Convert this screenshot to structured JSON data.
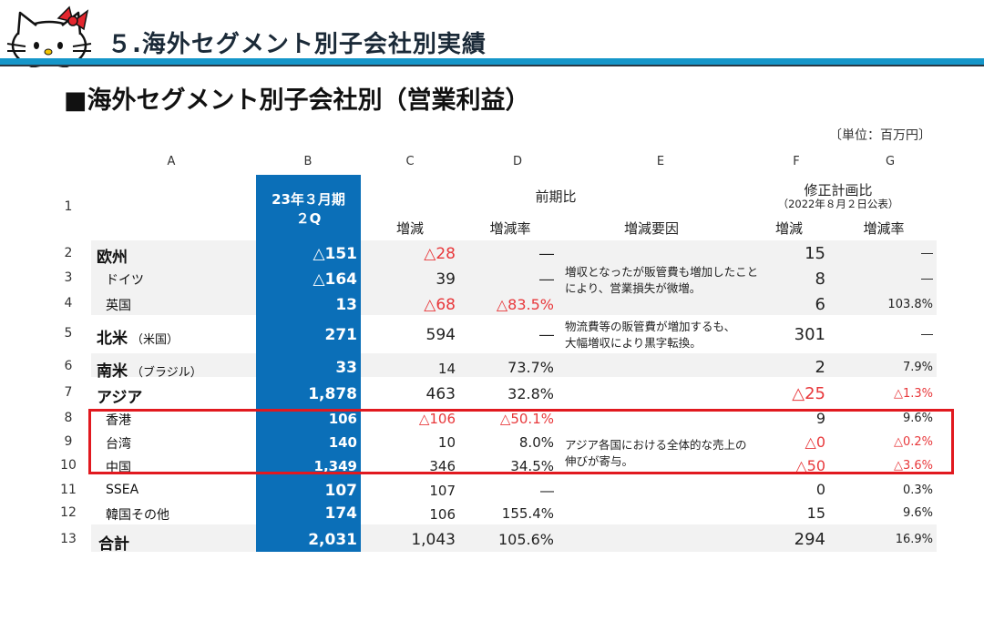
{
  "header": {
    "slide_title": "５.海外セグメント別子会社別実績",
    "section_title": "■海外セグメント別子会社別（営業利益）",
    "unit": "〔単位：百万円〕"
  },
  "table": {
    "column_letters": [
      "A",
      "B",
      "C",
      "D",
      "E",
      "F",
      "G"
    ],
    "b_header": [
      "23年３月期",
      "２Q"
    ],
    "prev_group_label": "前期比",
    "plan_group_label": "修正計画比",
    "plan_group_note": "（2022年８月２日公表）",
    "sub_headers": {
      "c": "増減",
      "d": "増減率",
      "e": "増減要因",
      "f": "増減",
      "g": "増減率"
    },
    "rows": [
      {
        "num": "1"
      },
      {
        "num": "2",
        "name": "欧州",
        "paren": "",
        "b": "△151",
        "c": "△28",
        "d": "―",
        "f": "15",
        "g": "―"
      },
      {
        "num": "3",
        "name": "ドイツ",
        "paren": "",
        "b": "△164",
        "c": "39",
        "d": "―",
        "f": "8",
        "g": "―"
      },
      {
        "num": "4",
        "name": "英国",
        "paren": "",
        "b": "13",
        "c": "△68",
        "d": "△83.5%",
        "f": "6",
        "g": "103.8%"
      },
      {
        "num": "5",
        "name": "北米",
        "paren": "（米国）",
        "b": "271",
        "c": "594",
        "d": "―",
        "f": "301",
        "g": "―"
      },
      {
        "num": "6",
        "name": "南米",
        "paren": "（ブラジル）",
        "b": "33",
        "c": "14",
        "d": "73.7%",
        "f": "2",
        "g": "7.9%"
      },
      {
        "num": "7",
        "name": "アジア",
        "paren": "",
        "b": "1,878",
        "c": "463",
        "d": "32.8%",
        "f": "△25",
        "g": "△1.3%"
      },
      {
        "num": "8",
        "name": "香港",
        "paren": "",
        "b": "106",
        "c": "△106",
        "d": "△50.1%",
        "f": "9",
        "g": "9.6%"
      },
      {
        "num": "9",
        "name": "台湾",
        "paren": "",
        "b": "140",
        "c": "10",
        "d": "8.0%",
        "f": "△0",
        "g": "△0.2%"
      },
      {
        "num": "10",
        "name": "中国",
        "paren": "",
        "b": "1,349",
        "c": "346",
        "d": "34.5%",
        "f": "△50",
        "g": "△3.6%"
      },
      {
        "num": "11",
        "name": "SSEA",
        "paren": "",
        "b": "107",
        "c": "107",
        "d": "―",
        "f": "0",
        "g": "0.3%"
      },
      {
        "num": "12",
        "name": "韓国その他",
        "paren": "",
        "b": "174",
        "c": "106",
        "d": "155.4%",
        "f": "15",
        "g": "9.6%"
      },
      {
        "num": "13",
        "name": "合計",
        "paren": "",
        "b": "2,031",
        "c": "1,043",
        "d": "105.6%",
        "f": "294",
        "g": "16.9%"
      }
    ],
    "notes": {
      "europe": [
        "増収となったが販管費も増加したこと",
        "により、営業損失が微増。"
      ],
      "north_america": [
        "物流費等の販管費が増加するも、",
        "大幅増収により黒字転換。"
      ],
      "asia": [
        "アジア各国における全体的な売上の",
        "伸びが寄与。"
      ]
    },
    "colors": {
      "accent_blue": "#0b6fb8",
      "header_rule": "#1596c9",
      "negative_red": "#e8383b",
      "highlight_red": "#e1191f"
    }
  }
}
